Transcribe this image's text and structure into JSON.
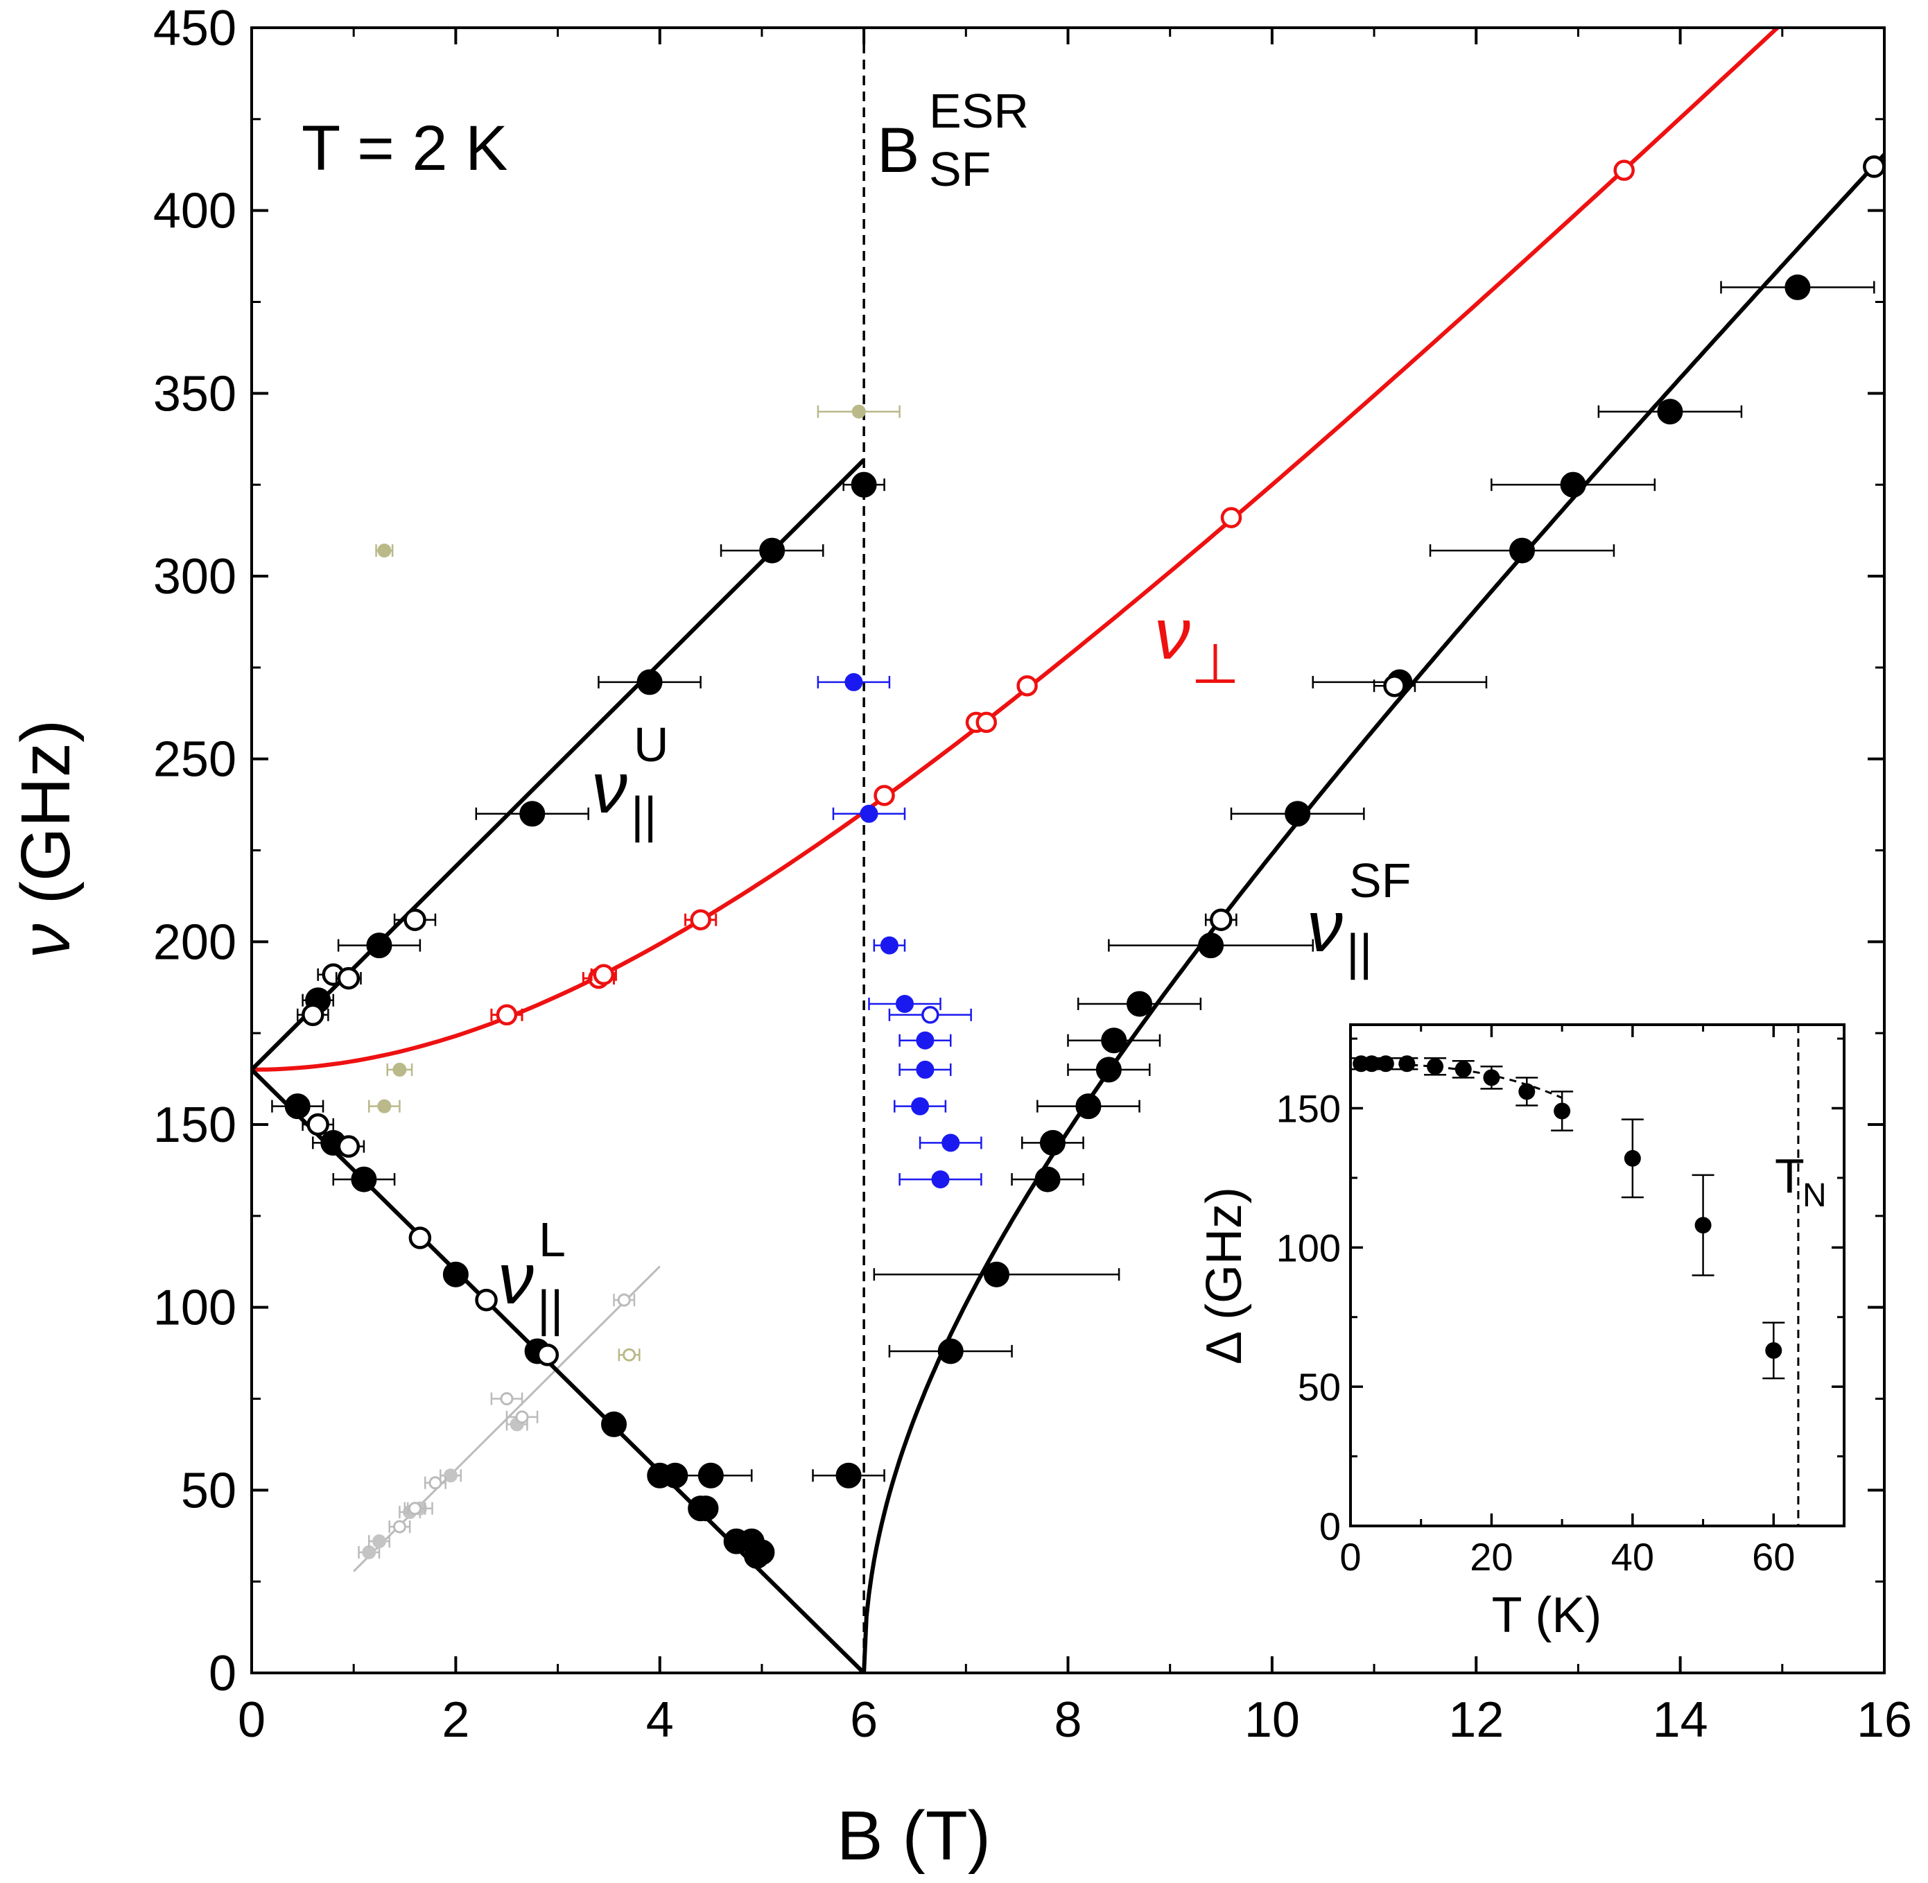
{
  "chart_data": {
    "type": "scatter",
    "colors": {
      "black": "#000000",
      "red": "#ee1111",
      "blue": "#1a1af0",
      "khaki": "#b9b98a",
      "gray": "#bbbbbb",
      "gray_fill": "#c4c4c4"
    },
    "main": {
      "xlabel": "B (T)",
      "ylabel_greek": "ν",
      "ylabel_unit": " (GHz)",
      "xlim": [
        0,
        16
      ],
      "ylim": [
        0,
        450
      ],
      "xticks": [
        0,
        2,
        4,
        6,
        8,
        10,
        12,
        14,
        16
      ],
      "yticks": [
        0,
        50,
        100,
        150,
        200,
        250,
        300,
        350,
        400,
        450
      ],
      "vline_x": 6.0,
      "annotations": {
        "temperature": "T = 2 K",
        "bsf_base": "B",
        "bsf_sup": "ESR",
        "bsf_sub": "SF",
        "nu_upper_base": "ν",
        "nu_upper_sup": "U",
        "nu_upper_sub": "||",
        "nu_lower_base": "ν",
        "nu_lower_sup": "L",
        "nu_lower_sub": "||",
        "nu_sf_base": "ν",
        "nu_sf_sup": "SF",
        "nu_sf_sub": "||",
        "nu_perp_base": "ν",
        "nu_perp_sub": "⊥"
      },
      "fits": {
        "gap_GHz": 165,
        "spin_flop_field_T": 6.0,
        "nu_perp_slope": 28.0,
        "upper_slope": 27.8,
        "sf_slope": 28.0
      },
      "series": [
        {
          "name": "nu_par_upper_filled",
          "style": "black_filled",
          "points": [
            [
              0.65,
              184,
              0.15
            ],
            [
              1.25,
              199,
              0.4
            ],
            [
              2.75,
              235,
              0.55
            ],
            [
              3.9,
              271,
              0.5
            ],
            [
              5.1,
              307,
              0.5
            ],
            [
              6.0,
              325,
              0.2
            ]
          ]
        },
        {
          "name": "nu_par_upper_open",
          "style": "black_open",
          "points": [
            [
              0.6,
              180,
              0.15
            ],
            [
              0.8,
              191,
              0.15
            ],
            [
              0.95,
              190,
              0.12
            ],
            [
              1.6,
              206,
              0.2
            ]
          ]
        },
        {
          "name": "nu_par_lower_filled",
          "style": "black_filled",
          "points": [
            [
              0.45,
              155,
              0.25
            ],
            [
              0.8,
              145,
              0.2
            ],
            [
              1.1,
              135,
              0.3
            ],
            [
              2.0,
              109,
              0
            ],
            [
              2.8,
              88,
              0
            ],
            [
              3.55,
              68,
              0
            ],
            [
              4.0,
              54,
              0
            ],
            [
              4.15,
              54,
              0
            ],
            [
              4.5,
              54,
              0.4
            ],
            [
              4.4,
              45,
              0
            ],
            [
              4.45,
              45,
              0
            ],
            [
              4.75,
              36,
              0
            ],
            [
              4.9,
              36,
              0
            ],
            [
              4.95,
              32,
              0
            ],
            [
              5.0,
              33,
              0
            ]
          ]
        },
        {
          "name": "nu_par_lower_open",
          "style": "black_open",
          "points": [
            [
              0.65,
              150,
              0.15
            ],
            [
              0.95,
              144,
              0.15
            ],
            [
              1.65,
              119,
              0
            ],
            [
              2.3,
              102,
              0
            ],
            [
              2.9,
              87,
              0
            ]
          ]
        },
        {
          "name": "nu_par_sf_filled",
          "style": "black_filled",
          "points": [
            [
              5.85,
              54,
              0.35
            ],
            [
              6.85,
              88,
              0.6
            ],
            [
              7.3,
              109,
              1.2
            ],
            [
              7.8,
              135,
              0.35
            ],
            [
              7.85,
              145,
              0.3
            ],
            [
              8.2,
              155,
              0.5
            ],
            [
              8.4,
              165,
              0.4
            ],
            [
              8.45,
              173,
              0.45
            ],
            [
              8.7,
              183,
              0.6
            ],
            [
              9.4,
              199,
              1.0
            ],
            [
              10.25,
              235,
              0.65
            ],
            [
              11.25,
              271,
              0.85
            ],
            [
              12.45,
              307,
              0.9
            ],
            [
              12.95,
              325,
              0.8
            ],
            [
              13.9,
              345,
              0.7
            ],
            [
              15.15,
              379,
              0.75
            ]
          ]
        },
        {
          "name": "nu_par_sf_open",
          "style": "black_open",
          "points": [
            [
              9.5,
              206,
              0.15
            ],
            [
              11.2,
              270,
              0.2
            ],
            [
              15.9,
              412,
              0
            ]
          ]
        },
        {
          "name": "nu_perp",
          "style": "red_open",
          "points": [
            [
              2.5,
              180,
              0.15
            ],
            [
              3.4,
              190,
              0.15
            ],
            [
              3.45,
              191,
              0.12
            ],
            [
              4.4,
              206,
              0.15
            ],
            [
              6.2,
              240,
              0
            ],
            [
              7.1,
              260,
              0
            ],
            [
              7.2,
              260,
              0
            ],
            [
              7.6,
              270,
              0
            ],
            [
              9.6,
              316,
              0
            ],
            [
              13.45,
              411,
              0
            ]
          ]
        },
        {
          "name": "blue_points",
          "style": "blue_filled",
          "points": [
            [
              5.9,
              271,
              0.35
            ],
            [
              6.05,
              235,
              0.35
            ],
            [
              6.25,
              199,
              0.15
            ],
            [
              6.4,
              183,
              0.35
            ],
            [
              6.6,
              173,
              0.25
            ],
            [
              6.6,
              165,
              0.25
            ],
            [
              6.55,
              155,
              0.25
            ],
            [
              6.85,
              145,
              0.3
            ],
            [
              6.75,
              135,
              0.4
            ]
          ]
        },
        {
          "name": "blue_open",
          "style": "blue_open",
          "points": [
            [
              6.65,
              180,
              0.4
            ]
          ]
        },
        {
          "name": "khaki_filled",
          "style": "khaki_filled",
          "points": [
            [
              1.3,
              307,
              0.08
            ],
            [
              1.45,
              165,
              0.12
            ],
            [
              1.3,
              155,
              0.15
            ],
            [
              5.95,
              345,
              0.4
            ]
          ]
        },
        {
          "name": "khaki_open",
          "style": "khaki_open",
          "points": [
            [
              3.7,
              87,
              0.1
            ]
          ]
        },
        {
          "name": "gray_filled",
          "style": "gray_filled",
          "points": [
            [
              1.15,
              33,
              0.1
            ],
            [
              1.25,
              36,
              0.1
            ],
            [
              1.55,
              44,
              0.1
            ],
            [
              1.65,
              45,
              0.12
            ],
            [
              1.95,
              54,
              0.1
            ],
            [
              2.6,
              68,
              0.1
            ]
          ]
        },
        {
          "name": "gray_open",
          "style": "gray_open",
          "points": [
            [
              1.45,
              40,
              0.1
            ],
            [
              1.6,
              45,
              0.1
            ],
            [
              1.8,
              52,
              0.1
            ],
            [
              2.5,
              75,
              0.15
            ],
            [
              2.65,
              70,
              0.15
            ],
            [
              3.65,
              102,
              0.1
            ]
          ]
        }
      ]
    },
    "inset": {
      "xlabel": "T (K)",
      "ylabel_greek": "Δ",
      "ylabel_unit": " (GHz)",
      "xlim": [
        0,
        70
      ],
      "ylim": [
        0,
        180
      ],
      "xticks": [
        0,
        20,
        40,
        60
      ],
      "yticks": [
        0,
        50,
        100,
        150
      ],
      "vline_x": 63.5,
      "vline_label_base": "T",
      "vline_label_sub": "N",
      "points": [
        [
          1.5,
          166,
          2
        ],
        [
          3,
          166,
          2
        ],
        [
          5,
          166,
          2
        ],
        [
          8,
          166,
          2
        ],
        [
          12,
          165,
          3
        ],
        [
          16,
          164,
          3
        ],
        [
          20,
          161,
          4
        ],
        [
          25,
          156,
          5
        ],
        [
          30,
          149,
          7
        ],
        [
          40,
          132,
          14
        ],
        [
          50,
          108,
          18
        ],
        [
          60,
          63,
          10
        ]
      ],
      "fit": {
        "delta0": 166,
        "tc": 63.5,
        "exponent": 2.6
      }
    }
  }
}
